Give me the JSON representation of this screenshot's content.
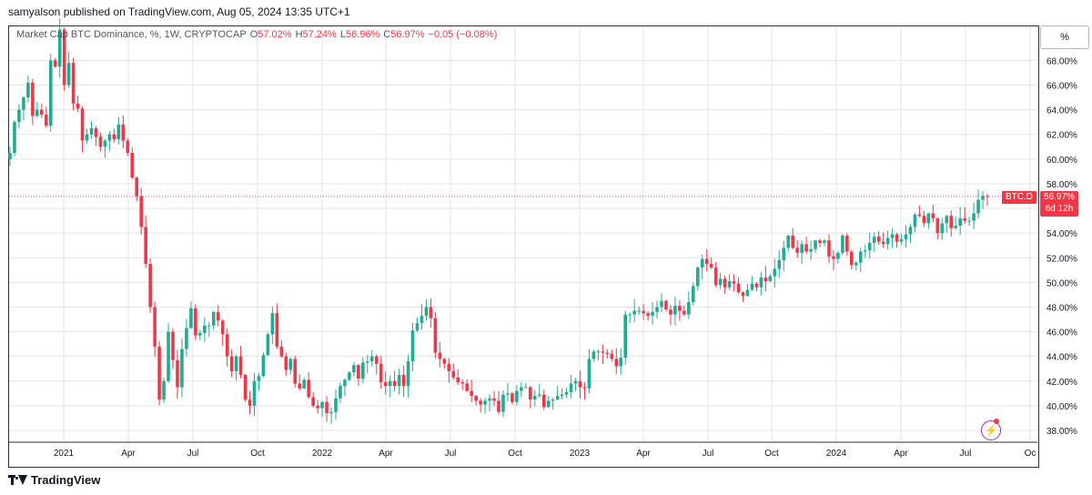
{
  "publisher_line": "samyalson published on TradingView.com, Aug 05, 2024 13:35 UTC+1",
  "legend": {
    "symbol": "Market Cap BTC Dominance, %, 1W, CRYPTOCAP",
    "o_label": "O",
    "o_value": "57.02%",
    "h_label": "H",
    "h_value": "57.24%",
    "l_label": "L",
    "l_value": "56.96%",
    "c_label": "C",
    "c_value": "56.97%",
    "change": "−0.05 (−0.08%)"
  },
  "scale_mode_button": "%",
  "last_price": {
    "ticker": "BTC.D",
    "value": "56.97%",
    "countdown": "6d 12h"
  },
  "footer_brand": "TradingView",
  "colors": {
    "up": "#22ab94",
    "down": "#f23645",
    "grid": "#e0e3eb",
    "axis_text": "#131722"
  },
  "chart_data": {
    "type": "candlestick",
    "title": "Market Cap BTC Dominance, %, 1W, CRYPTOCAP",
    "y_unit": "%",
    "ylim": [
      37.2,
      70.3
    ],
    "y_ticks": [
      38,
      40,
      42,
      44,
      46,
      48,
      50,
      52,
      54,
      56,
      58,
      60,
      62,
      64,
      66,
      68
    ],
    "x_tick_labels": [
      "2021",
      "Apr",
      "Jul",
      "Oct",
      "2022",
      "Apr",
      "Jul",
      "Oct",
      "2023",
      "Apr",
      "Jul",
      "Oct",
      "2024",
      "Apr",
      "Jul",
      "Oc"
    ],
    "last_value": 56.97,
    "grid": true,
    "series": [
      {
        "start_week": "2020-11-09",
        "closes": [
          60.5,
          63.0,
          64.0,
          65.0,
          66.2,
          63.5,
          64.0,
          63.6,
          62.7,
          68.0,
          67.5,
          70.5,
          66.0,
          67.8,
          64.5,
          64.1,
          61.5,
          62.0,
          62.5,
          61.8,
          61.0,
          61.5,
          62.0,
          61.6,
          62.8,
          61.5,
          60.5,
          58.5,
          57.0,
          54.5,
          51.5,
          48.0,
          44.8,
          40.5,
          42.0,
          46.0,
          43.7,
          41.5,
          44.6,
          46.3,
          47.9,
          45.7,
          45.9,
          46.5,
          46.5,
          47.6,
          46.9,
          45.8,
          44.0,
          42.8,
          44.0,
          42.5,
          40.5,
          40.0,
          42.0,
          42.4,
          44.1,
          45.8,
          47.5,
          44.8,
          44.0,
          42.9,
          43.8,
          41.8,
          41.4,
          42.1,
          40.7,
          40.0,
          39.8,
          40.3,
          39.4,
          39.5,
          40.6,
          41.6,
          42.1,
          42.7,
          43.3,
          42.2,
          43.5,
          43.6,
          44.0,
          43.4,
          41.9,
          41.6,
          42.0,
          41.6,
          42.5,
          41.6,
          43.6,
          46.1,
          46.7,
          47.3,
          48.0,
          47.1,
          44.3,
          43.8,
          43.4,
          42.8,
          42.3,
          41.9,
          41.8,
          41.2,
          40.8,
          40.4,
          40.1,
          40.4,
          40.6,
          40.4,
          39.5,
          40.9,
          41.0,
          40.3,
          41.2,
          41.5,
          41.5,
          40.5,
          40.8,
          40.9,
          39.9,
          40.4,
          40.5,
          40.8,
          40.9,
          41.1,
          41.8,
          42.0,
          41.5,
          41.4,
          43.8,
          44.4,
          44.4,
          44.3,
          44.2,
          43.8,
          43.2,
          43.9,
          47.4,
          47.4,
          47.7,
          47.7,
          47.5,
          47.3,
          47.6,
          48.0,
          48.5,
          47.8,
          47.4,
          48.1,
          47.7,
          47.4,
          48.4,
          49.7,
          51.2,
          51.9,
          51.5,
          51.2,
          49.8,
          50.3,
          49.6,
          50.1,
          49.9,
          49.2,
          48.9,
          49.4,
          49.9,
          49.6,
          50.4,
          50.1,
          50.5,
          51.1,
          51.8,
          52.8,
          53.8,
          52.8,
          52.4,
          53.1,
          52.5,
          52.7,
          53.4,
          53.2,
          53.4,
          52.1,
          51.9,
          52.4,
          53.8,
          52.5,
          51.4,
          51.6,
          52.5,
          52.6,
          53.2,
          53.7,
          53.3,
          53.1,
          53.6,
          53.9,
          53.3,
          53.5,
          53.9,
          54.5,
          55.5,
          55.4,
          54.8,
          55.6,
          55.2,
          54.0,
          54.8,
          55.4,
          54.4,
          54.6,
          55.2,
          55.0,
          55.0,
          55.6,
          56.7,
          57.0,
          56.97
        ]
      }
    ]
  }
}
